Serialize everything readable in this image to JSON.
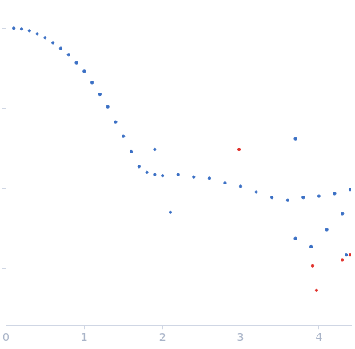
{
  "chart_data": {
    "type": "scatter",
    "log": "y",
    "tick_labels": "x",
    "grid": false,
    "xlim": [
      0,
      4.41
    ],
    "xticks": [
      0,
      1,
      2,
      3,
      4
    ],
    "ylim": [
      0.0002,
      2
    ],
    "yticks": [
      0.001,
      0.01,
      0.1,
      1
    ],
    "series": [
      {
        "color": "#3a6fc4",
        "marker": "circle",
        "x": [
          0.1,
          0.2,
          0.3,
          0.4,
          0.5,
          0.6,
          0.7,
          0.8,
          0.9,
          1.0,
          1.1,
          1.2,
          1.3,
          1.4,
          1.5,
          1.6,
          1.7,
          1.8,
          1.9,
          2.0,
          2.2,
          2.4,
          2.6,
          2.8,
          3.0,
          3.2,
          3.4,
          3.6,
          3.8,
          4.0,
          4.2,
          4.4,
          3.7,
          3.9,
          4.1,
          4.3,
          4.35,
          1.9,
          3.7,
          2.1
        ],
        "values": [
          1.0,
          0.977,
          0.933,
          0.85,
          0.76,
          0.66,
          0.56,
          0.47,
          0.37,
          0.29,
          0.21,
          0.15,
          0.105,
          0.068,
          0.045,
          0.029,
          0.019,
          0.016,
          0.015,
          0.0145,
          0.015,
          0.014,
          0.0135,
          0.0118,
          0.0107,
          0.0091,
          0.0078,
          0.0072,
          0.0078,
          0.0081,
          0.0087,
          0.0098,
          0.0024,
          0.0019,
          0.0031,
          0.0049,
          0.0015,
          0.031,
          0.042,
          0.0051
        ]
      },
      {
        "color": "#e0312b",
        "marker": "circle",
        "x": [
          2.98,
          3.92,
          3.97,
          4.3,
          4.4
        ],
        "values": [
          0.031,
          0.0011,
          0.00054,
          0.0013,
          0.0015
        ]
      }
    ]
  }
}
